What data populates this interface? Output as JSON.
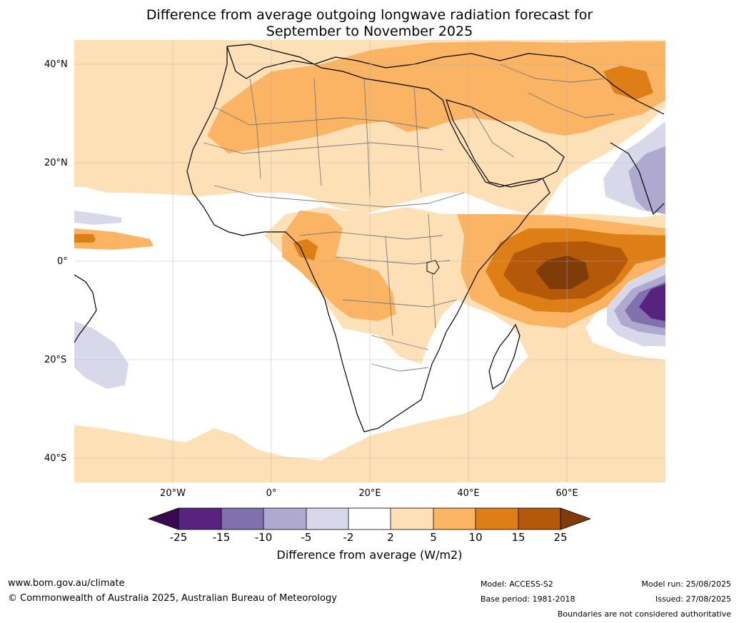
{
  "title_line1": "Difference from average outgoing longwave radiation forecast for",
  "title_line2": "September to November 2025",
  "lat_labels": [
    "40°N",
    "20°N",
    "0°",
    "20°S",
    "40°S"
  ],
  "lon_labels": [
    "20°W",
    "0°",
    "20°E",
    "40°E",
    "60°E"
  ],
  "colorbar": {
    "ticks": [
      "-25",
      "-15",
      "-10",
      "-5",
      "-2",
      "2",
      "5",
      "10",
      "15",
      "25"
    ],
    "colors": [
      "#3a0a4e",
      "#57237f",
      "#8070ac",
      "#b0a9cf",
      "#d8d8ea",
      "#ffffff",
      "#fde0b6",
      "#fab463",
      "#dd7e16",
      "#b45909",
      "#7f3b08"
    ],
    "label": "Difference from average (W/m2)"
  },
  "footer": {
    "website": "www.bom.gov.au/climate",
    "copyright": "© Commonwealth of Australia 2025, Australian Bureau of Meteorology",
    "model": "Model: ACCESS-S2",
    "base_period": "Base period: 1981-2018",
    "model_run": "Model run: 25/08/2025",
    "issued": "Issued: 27/08/2025",
    "disclaimer": "Boundaries are not considered authoritative"
  }
}
